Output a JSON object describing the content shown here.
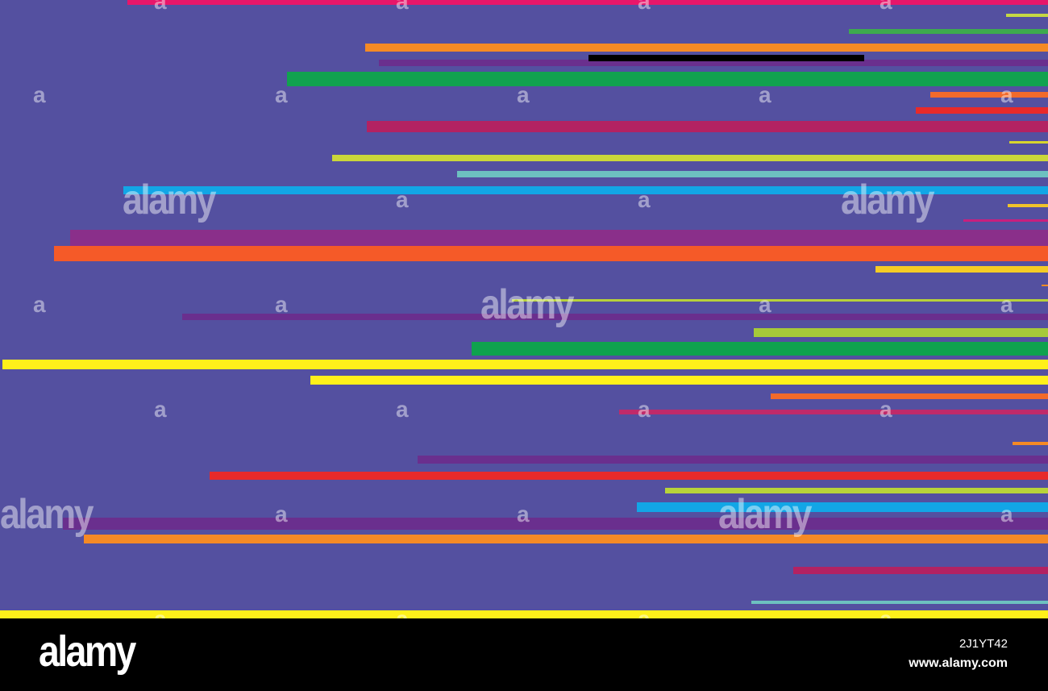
{
  "colors": {
    "background": "#5450a0",
    "footer": "#000000"
  },
  "watermark": {
    "logo_text": "alamy",
    "mark_text": "a"
  },
  "footer": {
    "logo_text": "alamy",
    "image_id": "2J1YT42",
    "url": "www.alamy.com"
  }
}
